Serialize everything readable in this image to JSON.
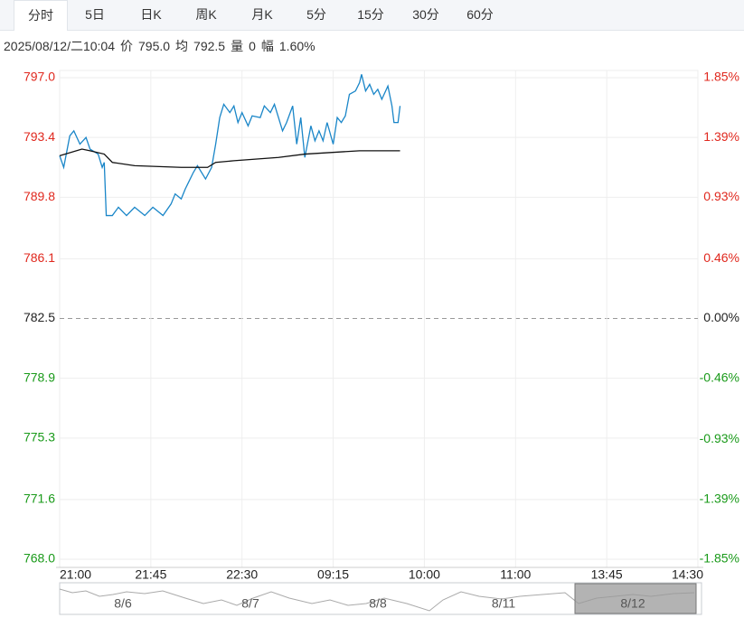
{
  "tabs": [
    "分时",
    "5日",
    "日K",
    "周K",
    "月K",
    "5分",
    "15分",
    "30分",
    "60分"
  ],
  "info": {
    "time": "2025/08/12/二10:04",
    "items": [
      {
        "label": "价",
        "value": "795.0"
      },
      {
        "label": "均",
        "value": "792.5"
      },
      {
        "label": "量",
        "value": "0"
      },
      {
        "label": "幅",
        "value": "1.60%"
      }
    ]
  },
  "chart_data": {
    "type": "line",
    "xlim": [
      0,
      315
    ],
    "xticks": [
      {
        "value": 0,
        "label": "21:00"
      },
      {
        "value": 45,
        "label": "21:45"
      },
      {
        "value": 90,
        "label": "22:30"
      },
      {
        "value": 135,
        "label": "09:15"
      },
      {
        "value": 180,
        "label": "10:00"
      },
      {
        "value": 225,
        "label": "11:00"
      },
      {
        "value": 270,
        "label": "13:45"
      },
      {
        "value": 315,
        "label": "14:30"
      }
    ],
    "ylim": [
      768.0,
      797.0
    ],
    "yticks": [
      {
        "value": 797.0,
        "label": "797.0"
      },
      793.4,
      789.8,
      786.1,
      782.5,
      778.9,
      775.3,
      771.6,
      {
        "value": 768.0,
        "label": "768.0"
      }
    ],
    "y2lim": [
      -1.85,
      1.85
    ],
    "y2ticks": [
      {
        "value": 1.85,
        "label": "1.85%"
      },
      {
        "value": 1.39,
        "label": "1.39%"
      },
      {
        "value": 0.93,
        "label": "0.93%"
      },
      {
        "value": 0.46,
        "label": "0.46%"
      },
      {
        "value": 0,
        "label": "0.00%"
      },
      {
        "value": -0.46,
        "label": "-0.46%"
      },
      {
        "value": -0.93,
        "label": "-0.93%"
      },
      {
        "value": -1.39,
        "label": "-1.39%"
      },
      {
        "value": -1.85,
        "label": "-1.85%"
      }
    ],
    "up_color": "#e0281e",
    "down_color": "#1a9a1a",
    "grid": true,
    "series": [
      {
        "x": [
          0,
          2,
          5,
          7,
          10,
          13,
          15,
          19,
          21,
          22,
          23,
          26,
          29,
          33,
          37,
          42,
          46,
          51,
          55,
          57,
          60,
          62,
          64,
          66,
          68,
          72,
          75,
          77,
          79,
          81,
          84,
          86,
          88,
          90,
          93,
          95,
          99,
          101,
          104,
          106,
          108,
          110,
          112,
          115,
          117,
          119,
          121,
          124,
          126,
          128,
          130,
          132,
          135,
          137,
          139,
          141,
          143,
          146,
          148,
          149,
          151,
          153,
          155,
          157,
          159,
          162,
          164,
          165,
          167,
          168
        ],
        "values": [
          792.3,
          791.6,
          793.5,
          793.8,
          793.0,
          793.4,
          792.7,
          792.4,
          791.6,
          791.9,
          788.7,
          788.7,
          789.2,
          788.7,
          789.2,
          788.7,
          789.2,
          788.7,
          789.4,
          790.0,
          789.7,
          790.3,
          790.8,
          791.3,
          791.7,
          790.9,
          791.6,
          793.0,
          794.6,
          795.4,
          794.9,
          795.3,
          794.3,
          794.9,
          794.1,
          794.7,
          794.6,
          795.3,
          794.9,
          795.4,
          794.6,
          793.8,
          794.3,
          795.3,
          793.0,
          794.6,
          792.2,
          794.1,
          793.2,
          793.8,
          793.2,
          794.3,
          793.0,
          794.6,
          794.3,
          794.7,
          796.0,
          796.2,
          796.7,
          797.2,
          796.2,
          796.6,
          796.0,
          796.3,
          795.7,
          796.5,
          795.3,
          794.3,
          794.3,
          795.3
        ],
        "color": "#1a86c8"
      },
      {
        "x": [
          0,
          11,
          15,
          22,
          26,
          37,
          60,
          73,
          77,
          86,
          108,
          121,
          148,
          168
        ],
        "values": [
          792.3,
          792.7,
          792.6,
          792.4,
          791.9,
          791.7,
          791.6,
          791.6,
          791.9,
          792.0,
          792.2,
          792.4,
          792.6,
          792.6
        ],
        "color": "#111111"
      }
    ],
    "navigator_labels": [
      "8/6",
      "8/7",
      "8/8",
      "8/11",
      "8/12"
    ]
  }
}
